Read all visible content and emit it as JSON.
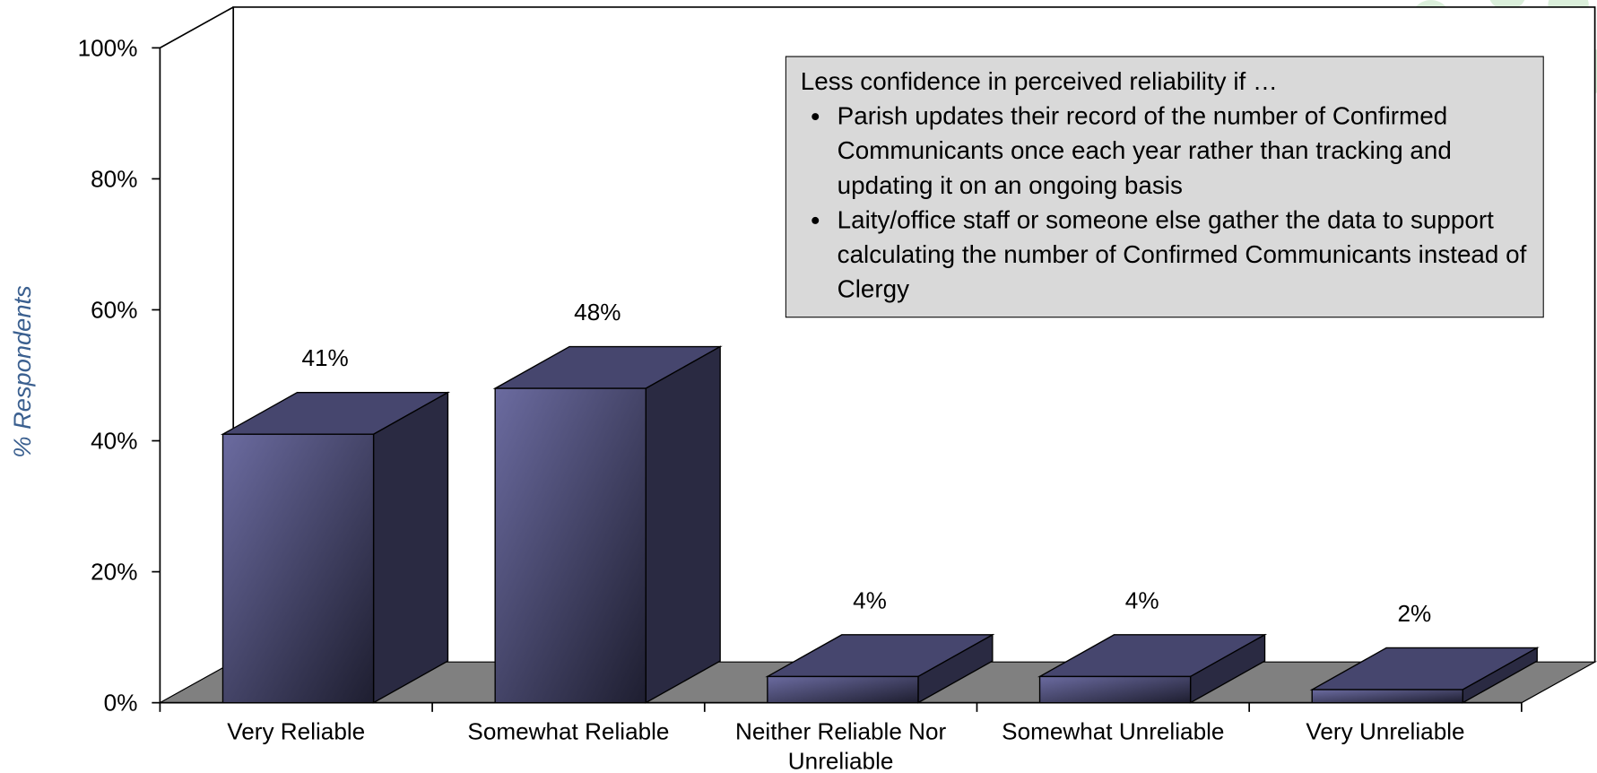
{
  "chart_data": {
    "type": "bar3d",
    "categories": [
      "Very Reliable",
      "Somewhat Reliable",
      "Neither Reliable Nor Unreliable",
      "Somewhat Unreliable",
      "Very Unreliable"
    ],
    "values": [
      41,
      48,
      4,
      4,
      2
    ],
    "value_labels": [
      "41%",
      "48%",
      "4%",
      "4%",
      "2%"
    ],
    "color": "#5a5a8c",
    "ylabel": "% Respondents",
    "ylim": [
      0,
      100
    ],
    "yticks": [
      {
        "value": 0,
        "label": "0%"
      },
      {
        "value": 20,
        "label": "20%"
      },
      {
        "value": 40,
        "label": "40%"
      },
      {
        "value": 60,
        "label": "60%"
      },
      {
        "value": 80,
        "label": "80%"
      },
      {
        "value": 100,
        "label": "100%"
      }
    ],
    "annotation": {
      "title": "Less confidence in perceived reliability if …",
      "bullets": [
        "Parish updates their record of the number of Confirmed Communicants once each year rather than tracking and updating it on an ongoing basis",
        "Laity/office staff or someone else gather the data to support calculating the number of Confirmed Communicants instead of Clergy"
      ]
    }
  }
}
